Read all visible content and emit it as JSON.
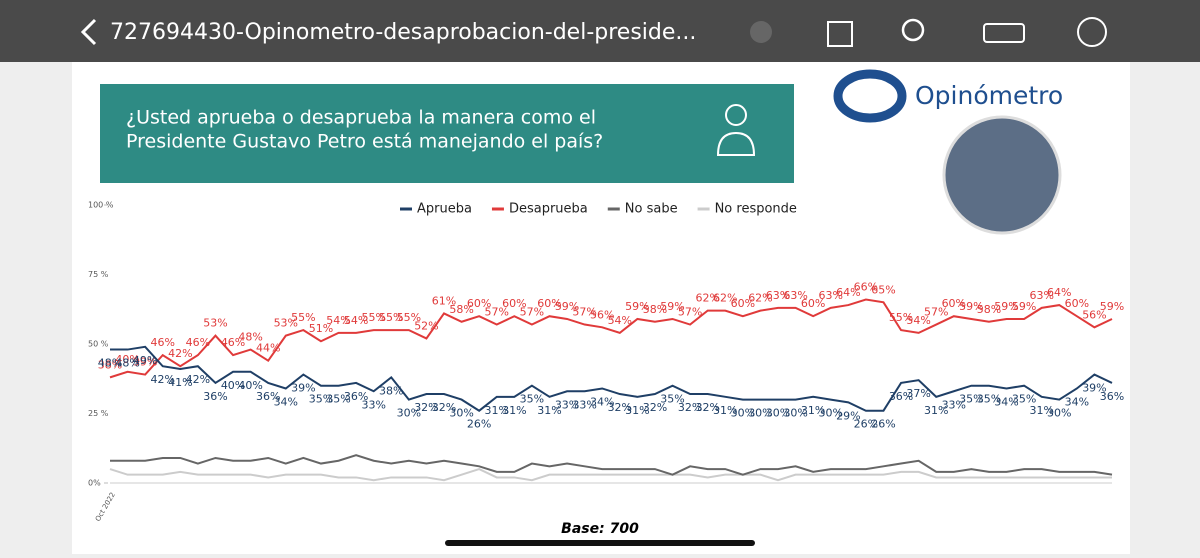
{
  "viewer": {
    "title": "727694430-Opinometro-desaprobacion-del-preside..."
  },
  "header": {
    "question_line1": "¿Usted aprueba o desaprueba la manera como el",
    "question_line2": "Presidente Gustavo Petro está manejando el país?",
    "logo": "Opinómetro"
  },
  "chart_data": {
    "type": "line",
    "note": "Base: 700",
    "categories": [
      "Oct 2022",
      null,
      null,
      null,
      null,
      null,
      null,
      null,
      null,
      null,
      null,
      null,
      null,
      null,
      null,
      null,
      null,
      null,
      null,
      null,
      null,
      null,
      null,
      null,
      null,
      null,
      null,
      null,
      null,
      null,
      null,
      null,
      null,
      null,
      null,
      null,
      null,
      null,
      null,
      null,
      null,
      null,
      null,
      null,
      null,
      null,
      null,
      null,
      null,
      null,
      null,
      null,
      null,
      null,
      null,
      null,
      null,
      null
    ],
    "ylim": [
      0,
      100
    ],
    "yticks": [
      {
        "value": 0,
        "label": "0%"
      },
      {
        "value": 25,
        "label": "25 %"
      },
      {
        "value": 50,
        "label": "50 %"
      },
      {
        "value": 75,
        "label": "75 %"
      },
      {
        "value": 100,
        "label": "100 %"
      }
    ],
    "legend": "top",
    "series": [
      {
        "name": "Aprueba",
        "color": "#1f3f66",
        "values": [
          48,
          48,
          49,
          42,
          41,
          42,
          36,
          40,
          40,
          36,
          34,
          39,
          35,
          35,
          36,
          33,
          38,
          30,
          32,
          32,
          30,
          26,
          31,
          31,
          35,
          31,
          33,
          33,
          34,
          32,
          31,
          32,
          35,
          32,
          32,
          31,
          30,
          30,
          30,
          30,
          31,
          30,
          29,
          26,
          26,
          36,
          37,
          31,
          33,
          35,
          35,
          34,
          35,
          31,
          30,
          34,
          39,
          36
        ],
        "value_labels": [
          "48%",
          "48%",
          "49%",
          "42%",
          "41%",
          "42%",
          "36%",
          "40%",
          "40%",
          "36%",
          "34%",
          "39%",
          "35%",
          "35%",
          "36%",
          "33%",
          "38%",
          "30%",
          "32%",
          "32%",
          "30%",
          "26%",
          "31%",
          "31%",
          "35%",
          "31%",
          "33%",
          "33%",
          "34%",
          "32%",
          "31%",
          "32%",
          "35%",
          "32%",
          "32%",
          "31%",
          "30%",
          "30%",
          "30%",
          "30%",
          "31%",
          "30%",
          "29%",
          "26%",
          "26%",
          "36%",
          "37%",
          "31%",
          "33%",
          "35%",
          "35%",
          "34%",
          "35%",
          "31%",
          "30%",
          "34%",
          "39%",
          "36%"
        ]
      },
      {
        "name": "Desaprueba",
        "color": "#e03a3a",
        "values": [
          38,
          40,
          39,
          46,
          42,
          46,
          53,
          46,
          48,
          44,
          53,
          55,
          51,
          54,
          54,
          55,
          55,
          55,
          52,
          61,
          58,
          60,
          57,
          60,
          57,
          60,
          59,
          57,
          56,
          54,
          59,
          58,
          59,
          57,
          62,
          62,
          60,
          62,
          63,
          63,
          60,
          63,
          64,
          66,
          65,
          55,
          54,
          57,
          60,
          59,
          58,
          59,
          59,
          63,
          64,
          60,
          56,
          59
        ],
        "value_labels": [
          "38%",
          "40%",
          "39%",
          "46%",
          "42%",
          "46%",
          "53%",
          "46%",
          "48%",
          "44%",
          "53%",
          "55%",
          "51%",
          "54%",
          "54%",
          "55%",
          "55%",
          "55%",
          "52%",
          "61%",
          "58%",
          "60%",
          "57%",
          "60%",
          "57%",
          "60%",
          "59%",
          "57%",
          "56%",
          "54%",
          "59%",
          "58%",
          "59%",
          "57%",
          "62%",
          "62%",
          "60%",
          "62%",
          "63%",
          "63%",
          "60%",
          "63%",
          "64%",
          "66%",
          "65%",
          "55%",
          "54%",
          "57%",
          "60%",
          "59%",
          "58%",
          "59%",
          "59%",
          "63%",
          "64%",
          "60%",
          "56%",
          "59%"
        ]
      },
      {
        "name": "No sabe",
        "color": "#666666",
        "values": [
          8,
          8,
          8,
          9,
          9,
          7,
          9,
          8,
          8,
          9,
          7,
          9,
          7,
          8,
          10,
          8,
          7,
          8,
          7,
          8,
          7,
          6,
          4,
          4,
          7,
          6,
          7,
          6,
          5,
          5,
          5,
          5,
          3,
          6,
          5,
          5,
          3,
          5,
          5,
          6,
          4,
          5,
          5,
          5,
          6,
          7,
          8,
          4,
          4,
          5,
          4,
          4,
          5,
          5,
          4,
          4,
          4,
          3
        ]
      },
      {
        "name": "No responde",
        "color": "#cccccc",
        "values": [
          5,
          3,
          3,
          3,
          4,
          3,
          3,
          3,
          3,
          2,
          3,
          3,
          3,
          2,
          2,
          1,
          2,
          2,
          2,
          1,
          3,
          5,
          2,
          2,
          1,
          3,
          3,
          3,
          3,
          3,
          3,
          3,
          3,
          3,
          2,
          3,
          3,
          3,
          1,
          3,
          3,
          3,
          3,
          3,
          3,
          4,
          4,
          2,
          2,
          2,
          2,
          2,
          2,
          2,
          2,
          2,
          2,
          2
        ]
      }
    ]
  }
}
